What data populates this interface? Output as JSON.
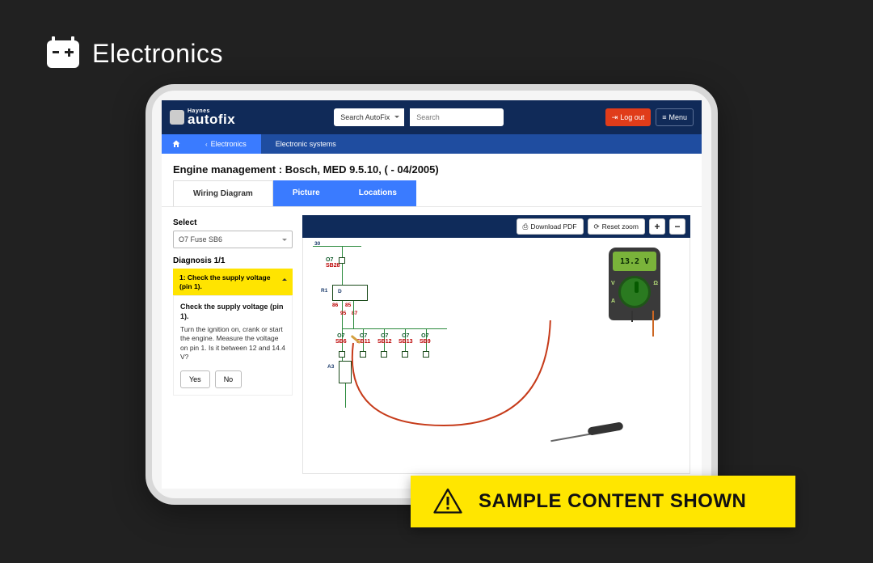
{
  "category": {
    "label": "Electronics"
  },
  "header": {
    "brand_top": "Haynes",
    "brand_bot": "autofix",
    "search_scope": "Search AutoFix",
    "search_placeholder": "Search",
    "logout": "Log out",
    "menu": "Menu"
  },
  "breadcrumb": {
    "electronics": "Electronics",
    "systems": "Electronic systems"
  },
  "page": {
    "title": "Engine management :  Bosch, MED 9.5.10, ( - 04/2005)"
  },
  "tabs": {
    "wiring": "Wiring Diagram",
    "picture": "Picture",
    "locations": "Locations"
  },
  "sidebar": {
    "select_label": "Select",
    "select_value": "O7  Fuse  SB6",
    "diagnosis_label": "Diagnosis 1/1",
    "step_header": "1: Check the supply voltage (pin 1).",
    "step_title": "Check the supply voltage (pin 1).",
    "step_body": "Turn the ignition on, crank or start the engine. Measure the voltage on pin 1. Is it between 12 and 14.4 V?",
    "yes": "Yes",
    "no": "No"
  },
  "toolbar": {
    "download": "Download PDF",
    "reset": "Reset zoom",
    "zoom_in": "+",
    "zoom_out": "−"
  },
  "diagram": {
    "meter_reading": "13.2 V",
    "bus_label": "30",
    "r1": "R1",
    "d": "D",
    "pins": {
      "p86": "86",
      "p85": "85",
      "p95": "95",
      "p87": "87"
    },
    "a3": "A3",
    "main": {
      "top": "O7",
      "bot": "SB28"
    },
    "branches": [
      {
        "top": "O7",
        "bot": "SB6"
      },
      {
        "top": "O7",
        "bot": "SB11"
      },
      {
        "top": "O7",
        "bot": "SB12"
      },
      {
        "top": "O7",
        "bot": "SB13"
      },
      {
        "top": "O7",
        "bot": "SB9"
      }
    ],
    "colors": {
      "wire": "#2a8a3c",
      "label_top": "#0f5a2a",
      "label_bot": "#b00000",
      "lead": "#c63b1a",
      "meter_body": "#3a3a3a",
      "meter_screen": "#7ab33a"
    }
  },
  "banner": {
    "text": "SAMPLE CONTENT SHOWN"
  },
  "colors": {
    "page_bg": "#212121",
    "header_bg": "#0f2b5a",
    "crumb_bg": "#1f4da0",
    "accent_blue": "#3a7bff",
    "accent_yellow": "#ffe400",
    "banner_yellow": "#ffe600",
    "logout_red": "#e03c1a"
  }
}
